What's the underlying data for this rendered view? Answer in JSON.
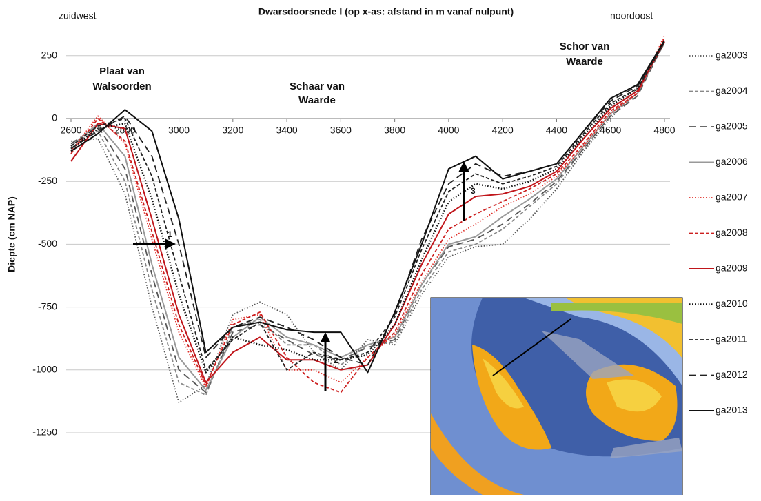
{
  "chart_data": {
    "type": "line",
    "title": "Dwarsdoorsnede I (op x-as: afstand in m vanaf nulpunt)",
    "y_label": "Diepte (cm NAP)",
    "annotations": {
      "left": "zuidwest",
      "right": "noordoost",
      "plaat": [
        "Plaat van",
        "Walsoorden"
      ],
      "schaar": [
        "Schaar van",
        "Waarde"
      ],
      "schor": [
        "Schor van",
        "Waarde"
      ],
      "arrows": [
        "1",
        "2",
        "3"
      ]
    },
    "x": [
      2600,
      2700,
      2800,
      2900,
      3000,
      3100,
      3200,
      3300,
      3400,
      3500,
      3600,
      3700,
      3800,
      3900,
      4000,
      4100,
      4200,
      4300,
      4400,
      4500,
      4600,
      4700,
      4800
    ],
    "xlim": [
      2600,
      4800
    ],
    "xticks": [
      2600,
      2800,
      3000,
      3200,
      3400,
      3600,
      3800,
      4000,
      4200,
      4400,
      4600,
      4800
    ],
    "ylim": [
      -1250,
      350
    ],
    "yticks": [
      250,
      0,
      -250,
      -500,
      -750,
      -1000,
      -1250
    ],
    "grid": true,
    "legend": "right",
    "series": [
      {
        "name": "ga2003",
        "color": "#555555",
        "dash": "dotted",
        "values": [
          -90,
          -80,
          -300,
          -750,
          -1130,
          -1060,
          -780,
          -730,
          -780,
          -930,
          -1000,
          -880,
          -900,
          -700,
          -550,
          -510,
          -500,
          -400,
          -280,
          -130,
          0,
          120,
          300
        ]
      },
      {
        "name": "ga2004",
        "color": "#888888",
        "dash": "dashed",
        "values": [
          -100,
          -50,
          -250,
          -680,
          -1050,
          -1100,
          -830,
          -800,
          -900,
          -900,
          -980,
          -900,
          -890,
          -680,
          -530,
          -500,
          -440,
          -350,
          -260,
          -120,
          10,
          100,
          300
        ]
      },
      {
        "name": "ga2005",
        "color": "#555555",
        "dash": "longdash",
        "values": [
          -100,
          -30,
          -200,
          -620,
          -1000,
          -1090,
          -850,
          -820,
          -880,
          -940,
          -960,
          -910,
          -880,
          -660,
          -510,
          -480,
          -420,
          -340,
          -250,
          -120,
          10,
          90,
          305
        ]
      },
      {
        "name": "ga2006",
        "color": "#999999",
        "dash": "solid",
        "values": [
          -110,
          -20,
          -150,
          -580,
          -950,
          -1080,
          -870,
          -790,
          -870,
          -900,
          -950,
          -900,
          -870,
          -660,
          -500,
          -470,
          -390,
          -320,
          -240,
          -110,
          20,
          100,
          310
        ]
      },
      {
        "name": "ga2007",
        "color": "#e0302a",
        "dash": "dotted",
        "values": [
          -130,
          10,
          -100,
          -480,
          -850,
          -1070,
          -800,
          -780,
          -1000,
          -1000,
          -1050,
          -950,
          -860,
          -650,
          -480,
          -420,
          -350,
          -300,
          -230,
          -110,
          20,
          100,
          330
        ]
      },
      {
        "name": "ga2008",
        "color": "#cc1f1f",
        "dash": "dashed",
        "values": [
          -140,
          0,
          -90,
          -450,
          -820,
          -1060,
          -820,
          -770,
          -950,
          -1050,
          -1090,
          -950,
          -850,
          -620,
          -440,
          -380,
          -330,
          -280,
          -220,
          -100,
          30,
          100,
          320
        ]
      },
      {
        "name": "ga2009",
        "color": "#c0161b",
        "dash": "solid",
        "values": [
          -170,
          -20,
          -40,
          -400,
          -780,
          -1050,
          -930,
          -870,
          -960,
          -960,
          -1000,
          -980,
          -820,
          -580,
          -380,
          -310,
          -300,
          -270,
          -210,
          -80,
          40,
          110,
          305
        ]
      },
      {
        "name": "ga2010",
        "color": "#111111",
        "dash": "dotted",
        "values": [
          -120,
          -40,
          -20,
          -320,
          -700,
          -1010,
          -870,
          -900,
          -920,
          -960,
          -960,
          -940,
          -820,
          -560,
          -330,
          -260,
          -280,
          -250,
          -200,
          -70,
          50,
          120,
          305
        ]
      },
      {
        "name": "ga2011",
        "color": "#222222",
        "dash": "dashed",
        "values": [
          -110,
          -30,
          0,
          -230,
          -620,
          -1000,
          -880,
          -810,
          -1000,
          -930,
          -960,
          -930,
          -790,
          -520,
          -290,
          -220,
          -260,
          -230,
          -190,
          -60,
          60,
          120,
          305
        ]
      },
      {
        "name": "ga2012",
        "color": "#222222",
        "dash": "longdash",
        "values": [
          -120,
          -50,
          10,
          -150,
          -500,
          -950,
          -830,
          -790,
          -830,
          -880,
          -950,
          -980,
          -780,
          -480,
          -260,
          -180,
          -230,
          -210,
          -180,
          -50,
          70,
          130,
          310
        ]
      },
      {
        "name": "ga2013",
        "color": "#111111",
        "dash": "solid",
        "values": [
          -130,
          -60,
          35,
          -50,
          -400,
          -930,
          -830,
          -810,
          -840,
          -850,
          -850,
          -1010,
          -770,
          -500,
          -200,
          -150,
          -240,
          -210,
          -180,
          -50,
          80,
          135,
          310
        ]
      }
    ]
  }
}
